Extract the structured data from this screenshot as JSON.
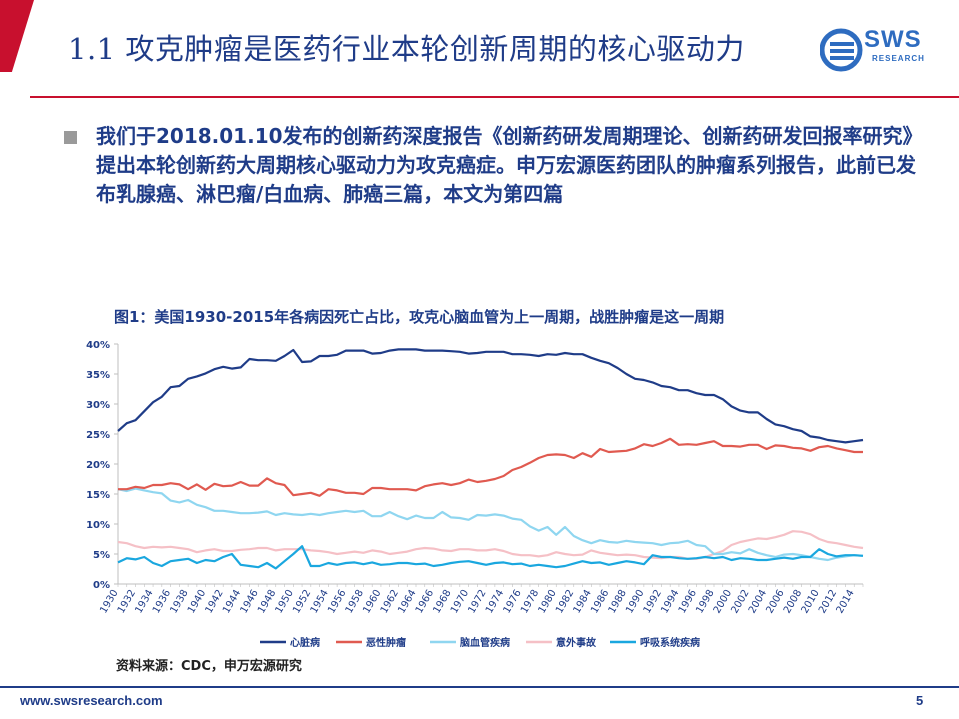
{
  "slide": {
    "title": "1.1 攻克肿瘤是医药行业本轮创新周期的核心驱动力",
    "logo_text": "SWS",
    "logo_subtext": "RESEARCH",
    "bullet_text": "我们于2018.01.10发布的创新药深度报告《创新药研发周期理论、创新药研发回报率研究》提出本轮创新药大周期核心驱动力为攻克癌症。申万宏源医药团队的肿瘤系列报告，此前已发布乳腺癌、淋巴瘤/白血病、肺癌三篇，本文为第四篇",
    "source": "资料来源：CDC，申万宏源研究",
    "footer_url": "www.swsresearch.com",
    "page_number": "5"
  },
  "colors": {
    "brand_red": "#c8102e",
    "brand_blue": "#1f3c88"
  },
  "chart_data": {
    "type": "line",
    "title": "图1：美国1930-2015年各病因死亡占比，攻克心脑血管为上一周期，战胜肿瘤是这一周期",
    "x": [
      1930,
      1931,
      1932,
      1933,
      1934,
      1935,
      1936,
      1937,
      1938,
      1939,
      1940,
      1941,
      1942,
      1943,
      1944,
      1945,
      1946,
      1947,
      1948,
      1949,
      1950,
      1951,
      1952,
      1953,
      1954,
      1955,
      1956,
      1957,
      1958,
      1959,
      1960,
      1961,
      1962,
      1963,
      1964,
      1965,
      1966,
      1967,
      1968,
      1969,
      1970,
      1971,
      1972,
      1973,
      1974,
      1975,
      1976,
      1977,
      1978,
      1979,
      1980,
      1981,
      1982,
      1983,
      1984,
      1985,
      1986,
      1987,
      1988,
      1989,
      1990,
      1991,
      1992,
      1993,
      1994,
      1995,
      1996,
      1997,
      1998,
      1999,
      2000,
      2001,
      2002,
      2003,
      2004,
      2005,
      2006,
      2007,
      2008,
      2009,
      2010,
      2011,
      2012,
      2013,
      2014,
      2015
    ],
    "x_tick_labels": [
      "1930",
      "1932",
      "1934",
      "1936",
      "1938",
      "1940",
      "1942",
      "1944",
      "1946",
      "1948",
      "1950",
      "1952",
      "1954",
      "1956",
      "1958",
      "1960",
      "1962",
      "1964",
      "1966",
      "1968",
      "1970",
      "1972",
      "1974",
      "1976",
      "1978",
      "1980",
      "1982",
      "1984",
      "1986",
      "1988",
      "1990",
      "1992",
      "1994",
      "1996",
      "1998",
      "2000",
      "2002",
      "2004",
      "2006",
      "2008",
      "2010",
      "2012",
      "2014"
    ],
    "ylim": [
      0,
      40
    ],
    "y_ticks": [
      0,
      5,
      10,
      15,
      20,
      25,
      30,
      35,
      40
    ],
    "y_tick_labels": [
      "0%",
      "5%",
      "10%",
      "15%",
      "20%",
      "25%",
      "30%",
      "35%",
      "40%"
    ],
    "legend_position": "bottom",
    "series": [
      {
        "name": "心脏病",
        "color": "#1f3c88",
        "values": [
          25.5,
          26.8,
          27.3,
          28.8,
          30.3,
          31.2,
          32.8,
          33.0,
          34.2,
          34.6,
          35.1,
          35.8,
          36.2,
          35.9,
          36.1,
          37.5,
          37.3,
          37.3,
          37.2,
          38.0,
          39.0,
          37.0,
          37.1,
          38.0,
          38.0,
          38.2,
          38.9,
          38.9,
          38.9,
          38.4,
          38.5,
          38.9,
          39.1,
          39.1,
          39.1,
          38.9,
          38.9,
          38.9,
          38.8,
          38.7,
          38.4,
          38.5,
          38.7,
          38.7,
          38.7,
          38.3,
          38.3,
          38.2,
          38.0,
          38.3,
          38.2,
          38.5,
          38.3,
          38.3,
          37.7,
          37.2,
          36.8,
          36.0,
          35.0,
          34.2,
          34.0,
          33.6,
          33.0,
          32.8,
          32.3,
          32.3,
          31.8,
          31.5,
          31.5,
          30.8,
          29.6,
          28.9,
          28.6,
          28.6,
          27.5,
          26.6,
          26.3,
          25.8,
          25.5,
          24.6,
          24.4,
          24.0,
          23.8,
          23.6,
          23.8,
          24.0
        ]
      },
      {
        "name": "恶性肿瘤",
        "color": "#e05a50",
        "values": [
          15.8,
          15.8,
          16.2,
          16.0,
          16.5,
          16.5,
          16.8,
          16.6,
          15.8,
          16.6,
          15.7,
          16.7,
          16.3,
          16.4,
          17.0,
          16.4,
          16.4,
          17.6,
          16.8,
          16.5,
          14.8,
          15.0,
          15.2,
          14.7,
          15.8,
          15.6,
          15.2,
          15.2,
          15.0,
          16.0,
          16.0,
          15.8,
          15.8,
          15.8,
          15.6,
          16.3,
          16.6,
          16.8,
          16.5,
          16.8,
          17.4,
          17.0,
          17.2,
          17.5,
          18.0,
          19.0,
          19.5,
          20.2,
          21.0,
          21.5,
          21.6,
          21.5,
          21.0,
          21.8,
          21.2,
          22.5,
          22.0,
          22.1,
          22.2,
          22.6,
          23.3,
          23.0,
          23.5,
          24.2,
          23.2,
          23.3,
          23.2,
          23.5,
          23.8,
          23.0,
          23.0,
          22.9,
          23.2,
          23.2,
          22.5,
          23.1,
          23.0,
          22.7,
          22.6,
          22.2,
          22.8,
          23.0,
          22.6,
          22.3,
          22.0,
          22.0
        ]
      },
      {
        "name": "脑血管疾病",
        "color": "#8fd6f0",
        "values": [
          15.8,
          15.5,
          15.9,
          15.6,
          15.3,
          15.1,
          13.9,
          13.6,
          14.0,
          13.2,
          12.8,
          12.2,
          12.2,
          12.0,
          11.8,
          11.8,
          11.9,
          12.1,
          11.5,
          11.8,
          11.6,
          11.5,
          11.7,
          11.5,
          11.8,
          12.0,
          12.2,
          12.0,
          12.2,
          11.3,
          11.3,
          12.0,
          11.3,
          10.8,
          11.4,
          11.0,
          11.0,
          12.0,
          11.1,
          11.0,
          10.7,
          11.5,
          11.4,
          11.6,
          11.4,
          10.9,
          10.7,
          9.6,
          8.9,
          9.5,
          8.2,
          9.5,
          8.0,
          7.3,
          6.8,
          7.3,
          7.0,
          6.9,
          7.2,
          7.0,
          6.9,
          6.8,
          6.5,
          6.8,
          6.9,
          7.2,
          6.5,
          6.3,
          5.0,
          5.0,
          5.3,
          5.1,
          5.8,
          5.2,
          4.8,
          4.5,
          4.9,
          5.0,
          4.8,
          4.5,
          4.2,
          4.0,
          4.4,
          4.6,
          4.8,
          4.7
        ]
      },
      {
        "name": "意外事故",
        "color": "#f5c0c6",
        "values": [
          7.0,
          6.8,
          6.3,
          6.0,
          6.2,
          6.1,
          6.2,
          6.0,
          5.8,
          5.3,
          5.6,
          5.8,
          5.5,
          5.5,
          5.7,
          5.8,
          6.0,
          6.0,
          5.6,
          5.8,
          5.8,
          5.8,
          5.6,
          5.5,
          5.3,
          5.0,
          5.2,
          5.4,
          5.2,
          5.6,
          5.4,
          5.0,
          5.2,
          5.4,
          5.8,
          6.0,
          5.9,
          5.6,
          5.5,
          5.8,
          5.8,
          5.6,
          5.6,
          5.8,
          5.5,
          5.0,
          4.8,
          4.8,
          4.6,
          4.8,
          5.3,
          5.0,
          4.8,
          4.9,
          5.6,
          5.2,
          5.0,
          4.8,
          4.9,
          4.8,
          4.5,
          4.4,
          4.3,
          4.5,
          4.5,
          4.2,
          4.2,
          4.5,
          5.0,
          5.5,
          6.5,
          7.0,
          7.3,
          7.6,
          7.5,
          7.8,
          8.2,
          8.8,
          8.7,
          8.3,
          7.5,
          7.0,
          6.8,
          6.5,
          6.2,
          6.0
        ]
      },
      {
        "name": "呼吸系统疾病",
        "color": "#1aa7df",
        "values": [
          3.6,
          4.3,
          4.1,
          4.5,
          3.5,
          3.0,
          3.8,
          4.0,
          4.2,
          3.5,
          4.0,
          3.8,
          4.5,
          5.0,
          3.2,
          3.0,
          2.8,
          3.5,
          2.6,
          3.8,
          5.0,
          6.3,
          3.0,
          3.0,
          3.5,
          3.2,
          3.5,
          3.6,
          3.3,
          3.6,
          3.2,
          3.3,
          3.5,
          3.5,
          3.3,
          3.4,
          3.0,
          3.2,
          3.5,
          3.7,
          3.8,
          3.5,
          3.2,
          3.5,
          3.6,
          3.3,
          3.4,
          3.0,
          3.2,
          3.0,
          2.8,
          3.0,
          3.4,
          3.8,
          3.5,
          3.6,
          3.2,
          3.5,
          3.8,
          3.6,
          3.3,
          4.8,
          4.5,
          4.5,
          4.3,
          4.2,
          4.3,
          4.5,
          4.3,
          4.5,
          4.0,
          4.3,
          4.2,
          4.0,
          4.0,
          4.2,
          4.4,
          4.2,
          4.5,
          4.5,
          5.8,
          5.0,
          4.6,
          4.8,
          4.8,
          4.7
        ]
      }
    ]
  }
}
